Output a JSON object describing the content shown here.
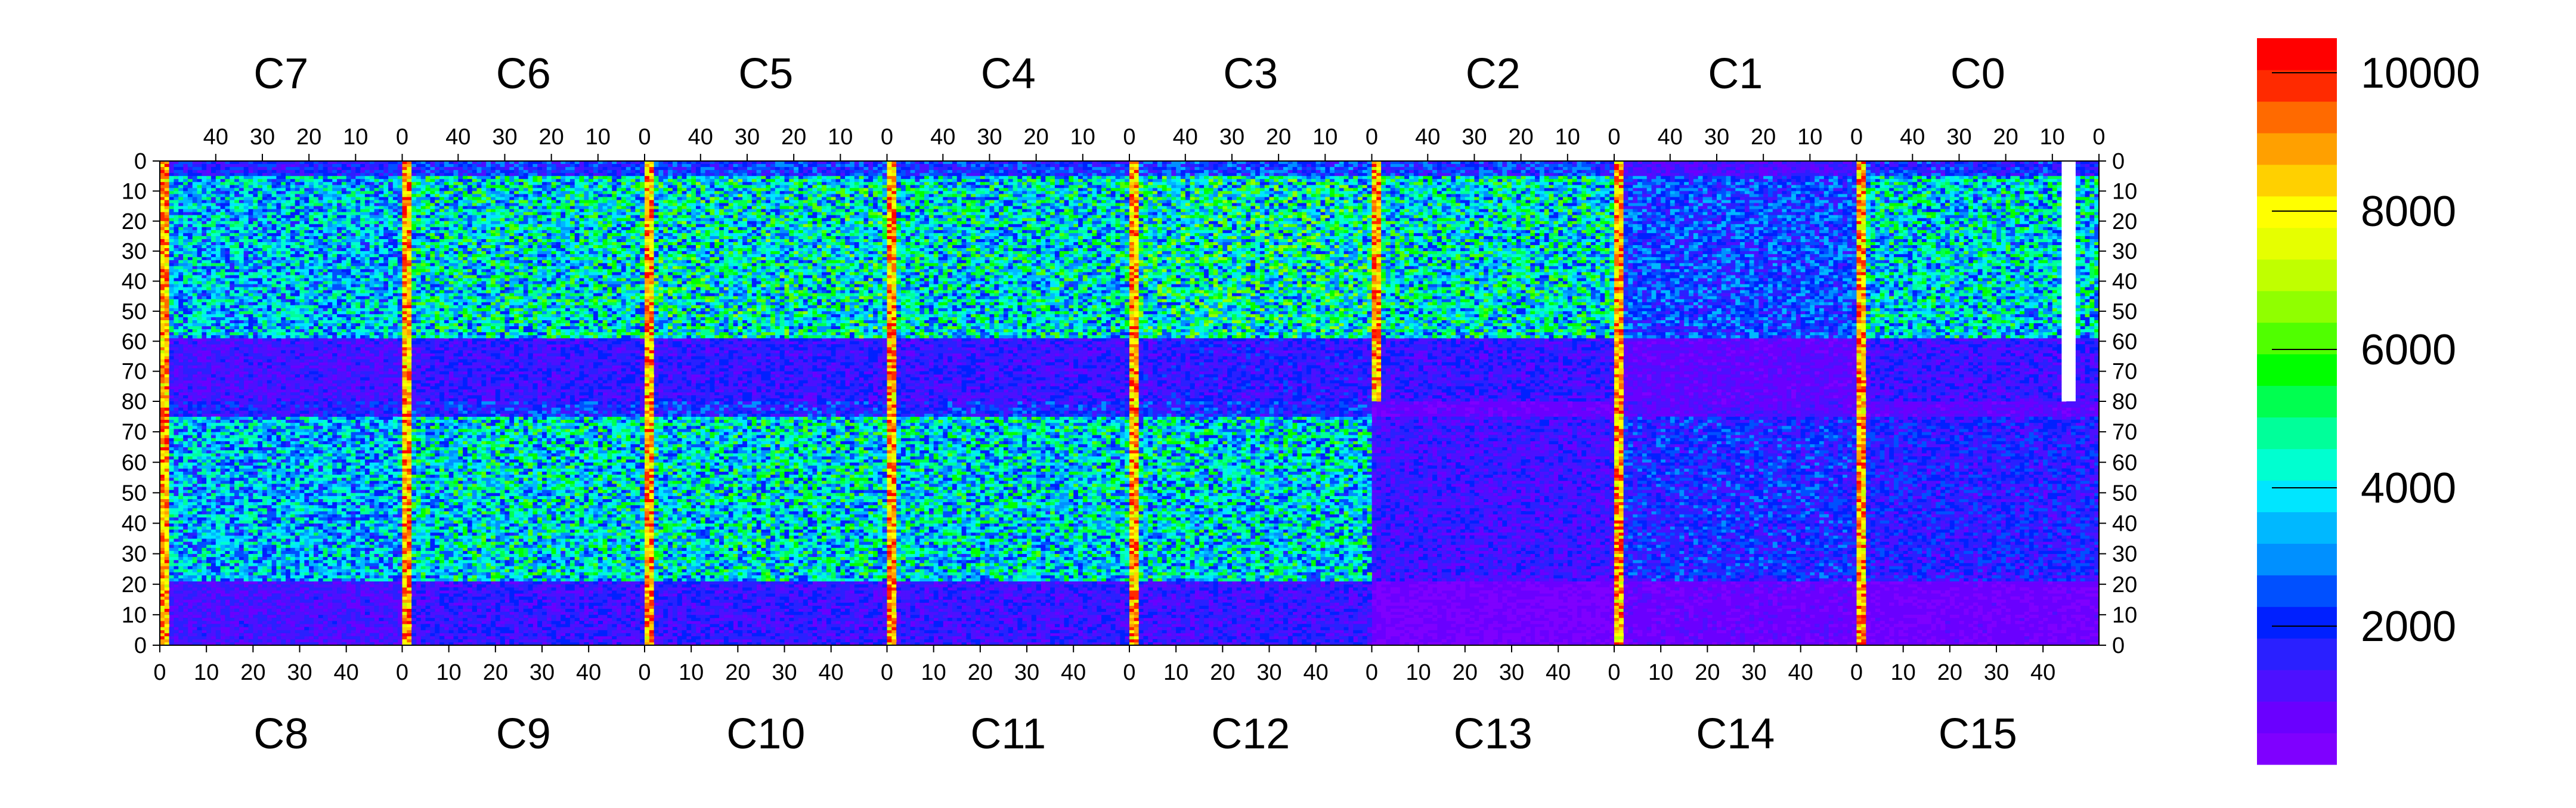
{
  "chart_data": {
    "type": "heatmap",
    "title": "",
    "xlabel": "",
    "ylabel": "",
    "top_chips": [
      "C7",
      "C6",
      "C5",
      "C4",
      "C3",
      "C2",
      "C1",
      "C0"
    ],
    "bottom_chips": [
      "C8",
      "C9",
      "C10",
      "C11",
      "C12",
      "C13",
      "C14",
      "C15"
    ],
    "top_column_ticks": [
      "40",
      "30",
      "20",
      "10",
      "0"
    ],
    "bottom_column_ticks": [
      "0",
      "10",
      "20",
      "30",
      "40"
    ],
    "top_row_ticks": [
      "0",
      "10",
      "20",
      "30",
      "40",
      "50",
      "60",
      "70",
      "80"
    ],
    "bottom_row_ticks": [
      "70",
      "60",
      "50",
      "40",
      "30",
      "20",
      "10",
      "0"
    ],
    "columns_per_chip": 52,
    "rows_per_half": 80,
    "colorbar": {
      "min": 0,
      "max": 10500,
      "ticks": [
        "2000",
        "4000",
        "6000",
        "8000",
        "10000"
      ],
      "tick_values": [
        2000,
        4000,
        6000,
        8000,
        10000
      ],
      "colors": [
        "#7f00ff",
        "#6a00ff",
        "#4d10ff",
        "#2a20ff",
        "#0020ff",
        "#0050ff",
        "#0090ff",
        "#00b8ff",
        "#00e6ff",
        "#00ffd0",
        "#00ff9a",
        "#00ff50",
        "#00ff00",
        "#50ff00",
        "#90ff00",
        "#c0ff00",
        "#e6ff00",
        "#ffff00",
        "#ffd000",
        "#ffa000",
        "#ff6a00",
        "#ff2a00",
        "#ff0000"
      ]
    },
    "zero_regions": [
      {
        "chip": "C0",
        "half": "top",
        "col_start": 44,
        "col_end": 46,
        "row_start": 0,
        "row_end": 80
      }
    ],
    "approximate_occupancy": {
      "C0": 3900,
      "C1": 2300,
      "C2": 4100,
      "C3": 4400,
      "C4": 4000,
      "C5": 4200,
      "C6": 4100,
      "C7": 3500,
      "C8": 3400,
      "C9": 4000,
      "C10": 4000,
      "C11": 3900,
      "C12": 3900,
      "C13": 1300,
      "C14": 1900,
      "C15": 1700
    },
    "edge_column_value": 9500
  }
}
